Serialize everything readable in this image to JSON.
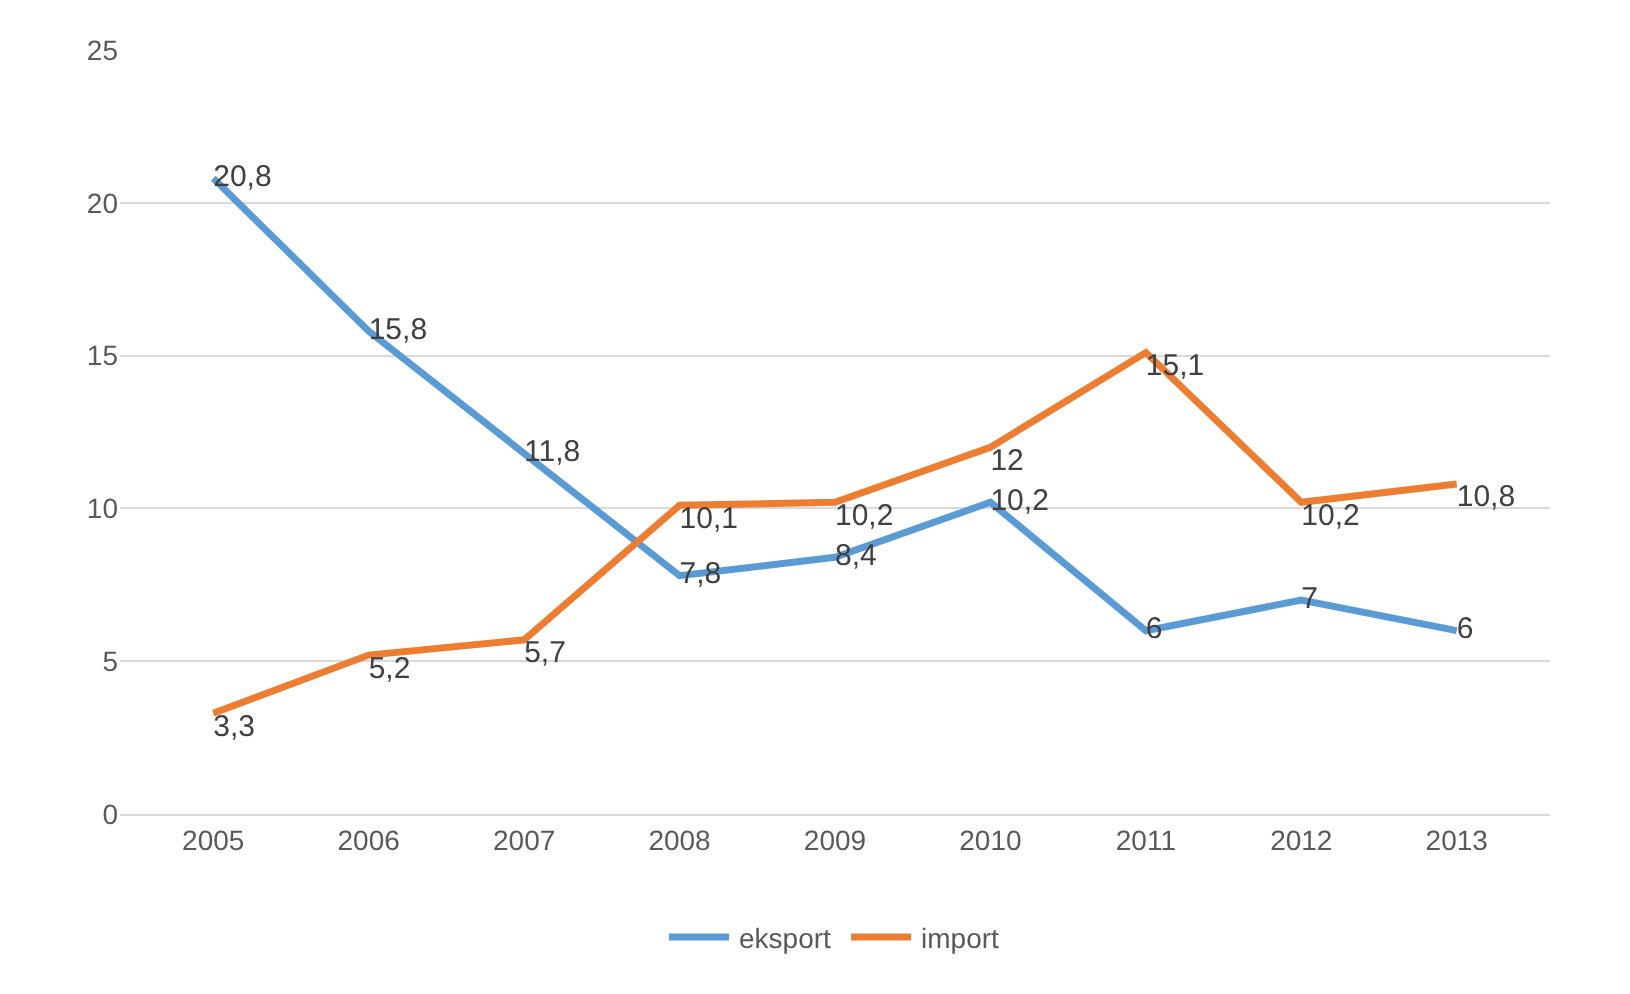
{
  "chart_data": {
    "type": "line",
    "categories": [
      "2005",
      "2006",
      "2007",
      "2008",
      "2009",
      "2010",
      "2011",
      "2012",
      "2013"
    ],
    "series": [
      {
        "name": "eksport",
        "color": "#5b9bd5",
        "values": [
          20.8,
          15.8,
          11.8,
          7.8,
          8.4,
          10.2,
          6,
          7,
          6
        ],
        "value_labels": [
          "20,8",
          "15,8",
          "11,8",
          "7,8",
          "8,4",
          "10,2",
          "6",
          "7",
          "6"
        ]
      },
      {
        "name": "import",
        "color": "#ed7d31",
        "values": [
          3.3,
          5.2,
          5.7,
          10.1,
          10.2,
          12,
          15.1,
          10.2,
          10.8
        ],
        "value_labels": [
          "3,3",
          "5,2",
          "5,7",
          "10,1",
          "10,2",
          "12",
          "15,1",
          "10,2",
          "10,8"
        ]
      }
    ],
    "ylim": [
      0,
      25
    ],
    "yticks": [
      0,
      5,
      10,
      15,
      20,
      25
    ],
    "grid": "y",
    "legend": "bottom",
    "marker": "none",
    "line_style": "solid"
  }
}
